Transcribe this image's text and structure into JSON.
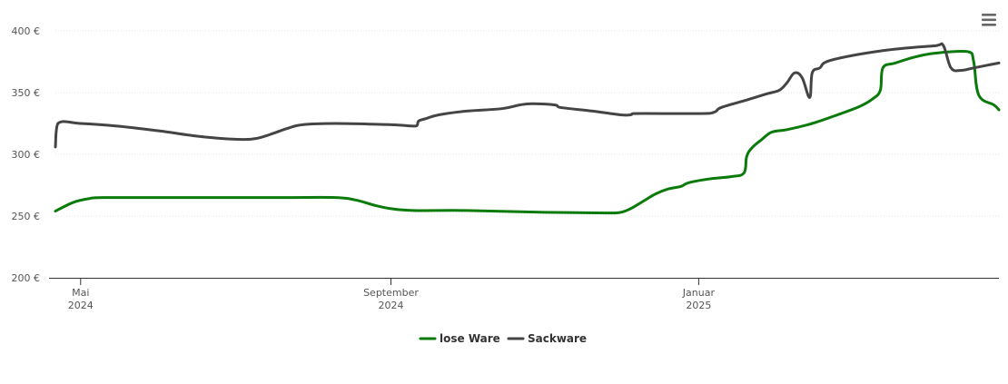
{
  "menu": {
    "icon": "hamburger-menu-icon"
  },
  "colors": {
    "lose": "#0a7a0a",
    "sack": "#444444",
    "grid": "#e6e6e6",
    "axis": "#333333"
  },
  "chart_data": {
    "type": "line",
    "title": "",
    "xlabel": "",
    "ylabel": "",
    "ylim": [
      200,
      400
    ],
    "y_ticks": [
      {
        "value": 200,
        "label": "200 €"
      },
      {
        "value": 250,
        "label": "250 €"
      },
      {
        "value": 300,
        "label": "300 €"
      },
      {
        "value": 350,
        "label": "350 €"
      },
      {
        "value": 400,
        "label": "400 €"
      }
    ],
    "x_range": [
      "2024-04-21",
      "2025-04-30"
    ],
    "x_ticks": [
      {
        "date": "2024-05-01",
        "month": "Mai",
        "year": "2024"
      },
      {
        "date": "2024-09-01",
        "month": "September",
        "year": "2024"
      },
      {
        "date": "2025-01-01",
        "month": "Januar",
        "year": "2025"
      }
    ],
    "legend_position": "bottom-center",
    "grid": "horizontal",
    "series": [
      {
        "name": "lose Ware",
        "color": "#0a7a0a",
        "points": [
          [
            "2024-04-21",
            254
          ],
          [
            "2024-04-28",
            261
          ],
          [
            "2024-05-04",
            264
          ],
          [
            "2024-05-10",
            265
          ],
          [
            "2024-06-15",
            265
          ],
          [
            "2024-07-20",
            265
          ],
          [
            "2024-08-10",
            265
          ],
          [
            "2024-08-18",
            263
          ],
          [
            "2024-08-25",
            259
          ],
          [
            "2024-09-01",
            256
          ],
          [
            "2024-09-10",
            254.5
          ],
          [
            "2024-10-01",
            254.5
          ],
          [
            "2024-11-01",
            253
          ],
          [
            "2024-11-25",
            252.5
          ],
          [
            "2024-12-01",
            253
          ],
          [
            "2024-12-05",
            256
          ],
          [
            "2024-12-10",
            262
          ],
          [
            "2024-12-15",
            268
          ],
          [
            "2024-12-20",
            272
          ],
          [
            "2024-12-25",
            274
          ],
          [
            "2024-12-28",
            277
          ],
          [
            "2025-01-05",
            280
          ],
          [
            "2025-01-14",
            282
          ],
          [
            "2025-01-19",
            285
          ],
          [
            "2025-01-20",
            298
          ],
          [
            "2025-01-22",
            305
          ],
          [
            "2025-01-26",
            312
          ],
          [
            "2025-01-30",
            318
          ],
          [
            "2025-02-05",
            320
          ],
          [
            "2025-02-15",
            325
          ],
          [
            "2025-02-25",
            332
          ],
          [
            "2025-03-06",
            339
          ],
          [
            "2025-03-11",
            345
          ],
          [
            "2025-03-14",
            352
          ],
          [
            "2025-03-15",
            370
          ],
          [
            "2025-03-20",
            374
          ],
          [
            "2025-03-28",
            379
          ],
          [
            "2025-04-05",
            382
          ],
          [
            "2025-04-18",
            383
          ],
          [
            "2025-04-20",
            375
          ],
          [
            "2025-04-22",
            348
          ],
          [
            "2025-04-28",
            340
          ],
          [
            "2025-04-30",
            336
          ]
        ]
      },
      {
        "name": "Sackware",
        "color": "#444444",
        "points": [
          [
            "2024-04-21",
            306
          ],
          [
            "2024-04-22",
            325
          ],
          [
            "2024-05-01",
            325
          ],
          [
            "2024-05-15",
            323
          ],
          [
            "2024-06-01",
            319
          ],
          [
            "2024-06-15",
            315
          ],
          [
            "2024-06-25",
            313
          ],
          [
            "2024-07-05",
            312
          ],
          [
            "2024-07-10",
            313
          ],
          [
            "2024-07-15",
            316
          ],
          [
            "2024-07-22",
            321
          ],
          [
            "2024-07-28",
            324
          ],
          [
            "2024-08-10",
            325
          ],
          [
            "2024-09-01",
            324
          ],
          [
            "2024-09-11",
            323
          ],
          [
            "2024-09-12",
            327
          ],
          [
            "2024-09-15",
            329
          ],
          [
            "2024-09-20",
            332
          ],
          [
            "2024-10-01",
            335
          ],
          [
            "2024-10-15",
            337
          ],
          [
            "2024-10-22",
            340
          ],
          [
            "2024-10-27",
            341
          ],
          [
            "2024-11-05",
            340
          ],
          [
            "2024-11-07",
            338
          ],
          [
            "2024-11-20",
            335
          ],
          [
            "2024-12-01",
            332
          ],
          [
            "2024-12-05",
            332
          ],
          [
            "2024-12-06",
            333
          ],
          [
            "2025-01-01",
            333
          ],
          [
            "2025-01-07",
            334
          ],
          [
            "2025-01-10",
            338
          ],
          [
            "2025-01-20",
            344
          ],
          [
            "2025-01-28",
            349
          ],
          [
            "2025-02-02",
            352
          ],
          [
            "2025-02-05",
            358
          ],
          [
            "2025-02-08",
            366
          ],
          [
            "2025-02-11",
            362
          ],
          [
            "2025-02-14",
            346
          ],
          [
            "2025-02-15",
            366
          ],
          [
            "2025-02-18",
            370
          ],
          [
            "2025-02-22",
            376
          ],
          [
            "2025-03-15",
            384
          ],
          [
            "2025-04-05",
            388
          ],
          [
            "2025-04-08",
            388
          ],
          [
            "2025-04-11",
            370
          ],
          [
            "2025-04-15",
            368
          ],
          [
            "2025-04-20",
            370
          ],
          [
            "2025-04-25",
            372
          ],
          [
            "2025-04-30",
            374
          ]
        ]
      }
    ]
  }
}
